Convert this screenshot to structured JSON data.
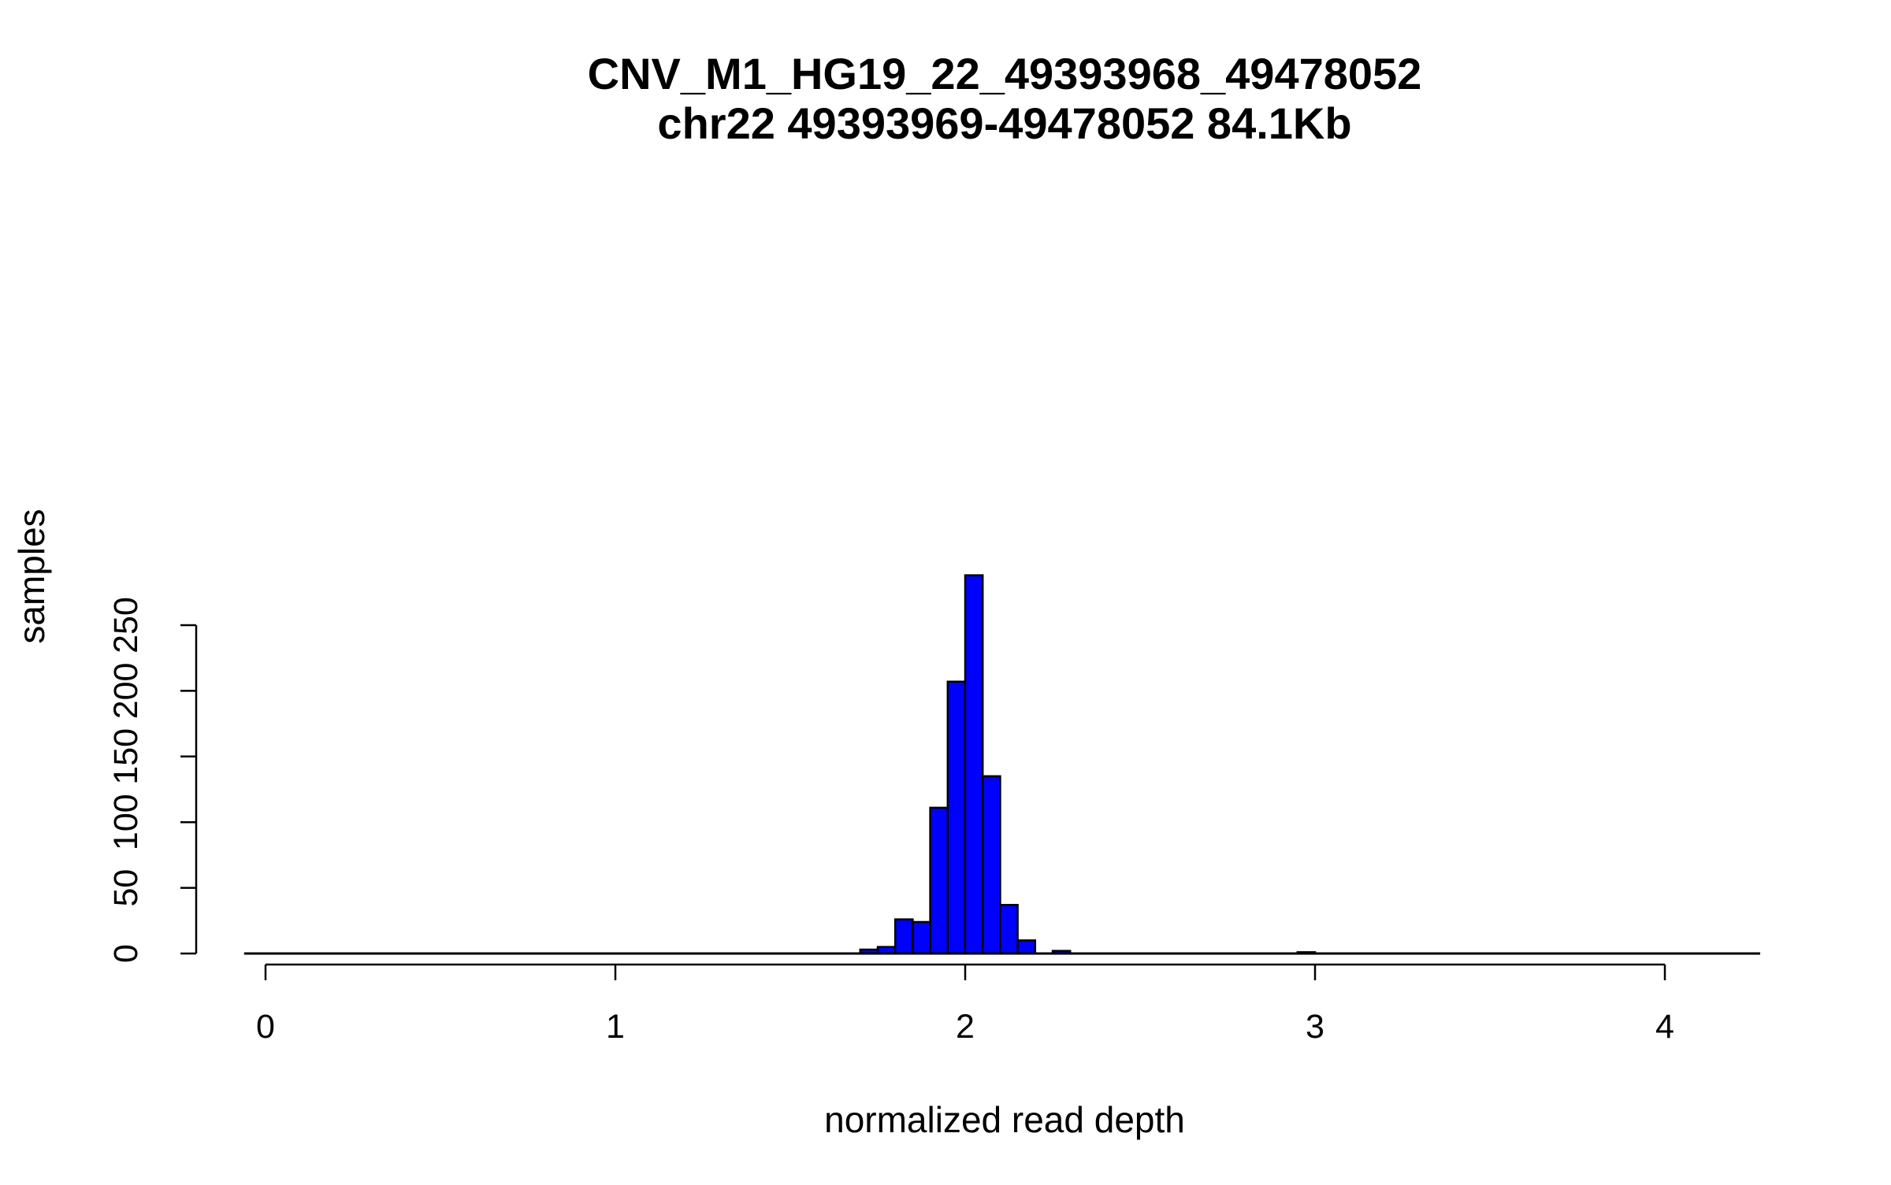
{
  "chart_data": {
    "type": "bar",
    "title": "CNV_M1_HG19_22_49393968_49478052",
    "subtitle": "chr22 49393969-49478052 84.1Kb",
    "xlabel": "normalized read depth",
    "ylabel": "samples",
    "xlim": [
      -0.05,
      4.25
    ],
    "ylim": [
      0,
      290
    ],
    "x_ticks": [
      "0",
      "1",
      "2",
      "3",
      "4"
    ],
    "y_ticks": [
      "0",
      "50",
      "100",
      "150",
      "200",
      "250"
    ],
    "bin_width": 0.05,
    "bar_color": "#0000ff",
    "bins": [
      {
        "x0": 1.7,
        "count": 3
      },
      {
        "x0": 1.75,
        "count": 5
      },
      {
        "x0": 1.8,
        "count": 26
      },
      {
        "x0": 1.85,
        "count": 24
      },
      {
        "x0": 1.9,
        "count": 111
      },
      {
        "x0": 1.95,
        "count": 207
      },
      {
        "x0": 2.0,
        "count": 288
      },
      {
        "x0": 2.05,
        "count": 135
      },
      {
        "x0": 2.1,
        "count": 37
      },
      {
        "x0": 2.15,
        "count": 10
      },
      {
        "x0": 2.25,
        "count": 2
      },
      {
        "x0": 2.95,
        "count": 1
      }
    ]
  }
}
